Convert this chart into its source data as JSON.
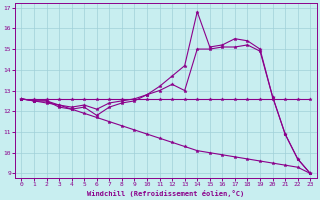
{
  "xlabel": "Windchill (Refroidissement éolien,°C)",
  "background_color": "#c8eef0",
  "line_color": "#8b008b",
  "grid_color": "#a0d0d8",
  "xlim": [
    -0.5,
    23.5
  ],
  "ylim": [
    8.8,
    17.2
  ],
  "yticks": [
    9,
    10,
    11,
    12,
    13,
    14,
    15,
    16,
    17
  ],
  "xticks": [
    0,
    1,
    2,
    3,
    4,
    5,
    6,
    7,
    8,
    9,
    10,
    11,
    12,
    13,
    14,
    15,
    16,
    17,
    18,
    19,
    20,
    21,
    22,
    23
  ],
  "series": [
    {
      "x": [
        0,
        1,
        2,
        3,
        4,
        5,
        6,
        7,
        8,
        9,
        10,
        11,
        12,
        13,
        14,
        15,
        16,
        17,
        18,
        19,
        20,
        21,
        22,
        23
      ],
      "y": [
        12.6,
        12.6,
        12.6,
        12.6,
        12.6,
        12.6,
        12.6,
        12.6,
        12.6,
        12.6,
        12.6,
        12.6,
        12.6,
        12.6,
        12.6,
        12.6,
        12.6,
        12.6,
        12.6,
        12.6,
        12.6,
        12.6,
        12.6,
        12.6
      ]
    },
    {
      "x": [
        0,
        1,
        2,
        3,
        4,
        5,
        6,
        7,
        8,
        9,
        10,
        11,
        12,
        13,
        14,
        15,
        16,
        17,
        18,
        19,
        20,
        21,
        22,
        23
      ],
      "y": [
        12.6,
        12.5,
        12.5,
        12.3,
        12.2,
        12.3,
        12.1,
        12.4,
        12.5,
        12.6,
        12.8,
        13.0,
        13.3,
        13.0,
        15.0,
        15.0,
        15.1,
        15.1,
        15.2,
        14.9,
        12.7,
        10.9,
        9.7,
        9.0
      ]
    },
    {
      "x": [
        0,
        1,
        2,
        3,
        4,
        5,
        6,
        7,
        8,
        9,
        10,
        11,
        12,
        13,
        14,
        15,
        16,
        17,
        18,
        19,
        20,
        21,
        22,
        23
      ],
      "y": [
        12.6,
        12.5,
        12.5,
        12.2,
        12.1,
        12.2,
        11.8,
        12.2,
        12.4,
        12.5,
        12.8,
        13.2,
        13.7,
        14.2,
        16.8,
        15.1,
        15.2,
        15.5,
        15.4,
        15.0,
        12.7,
        10.9,
        9.7,
        9.0
      ]
    },
    {
      "x": [
        0,
        1,
        2,
        3,
        4,
        5,
        6,
        7,
        8,
        9,
        10,
        11,
        12,
        13,
        14,
        15,
        16,
        17,
        18,
        19,
        20,
        21,
        22,
        23
      ],
      "y": [
        12.6,
        12.5,
        12.4,
        12.3,
        12.1,
        11.9,
        11.7,
        11.5,
        11.3,
        11.1,
        10.9,
        10.7,
        10.5,
        10.3,
        10.1,
        10.0,
        9.9,
        9.8,
        9.7,
        9.6,
        9.5,
        9.4,
        9.3,
        9.0
      ]
    }
  ]
}
